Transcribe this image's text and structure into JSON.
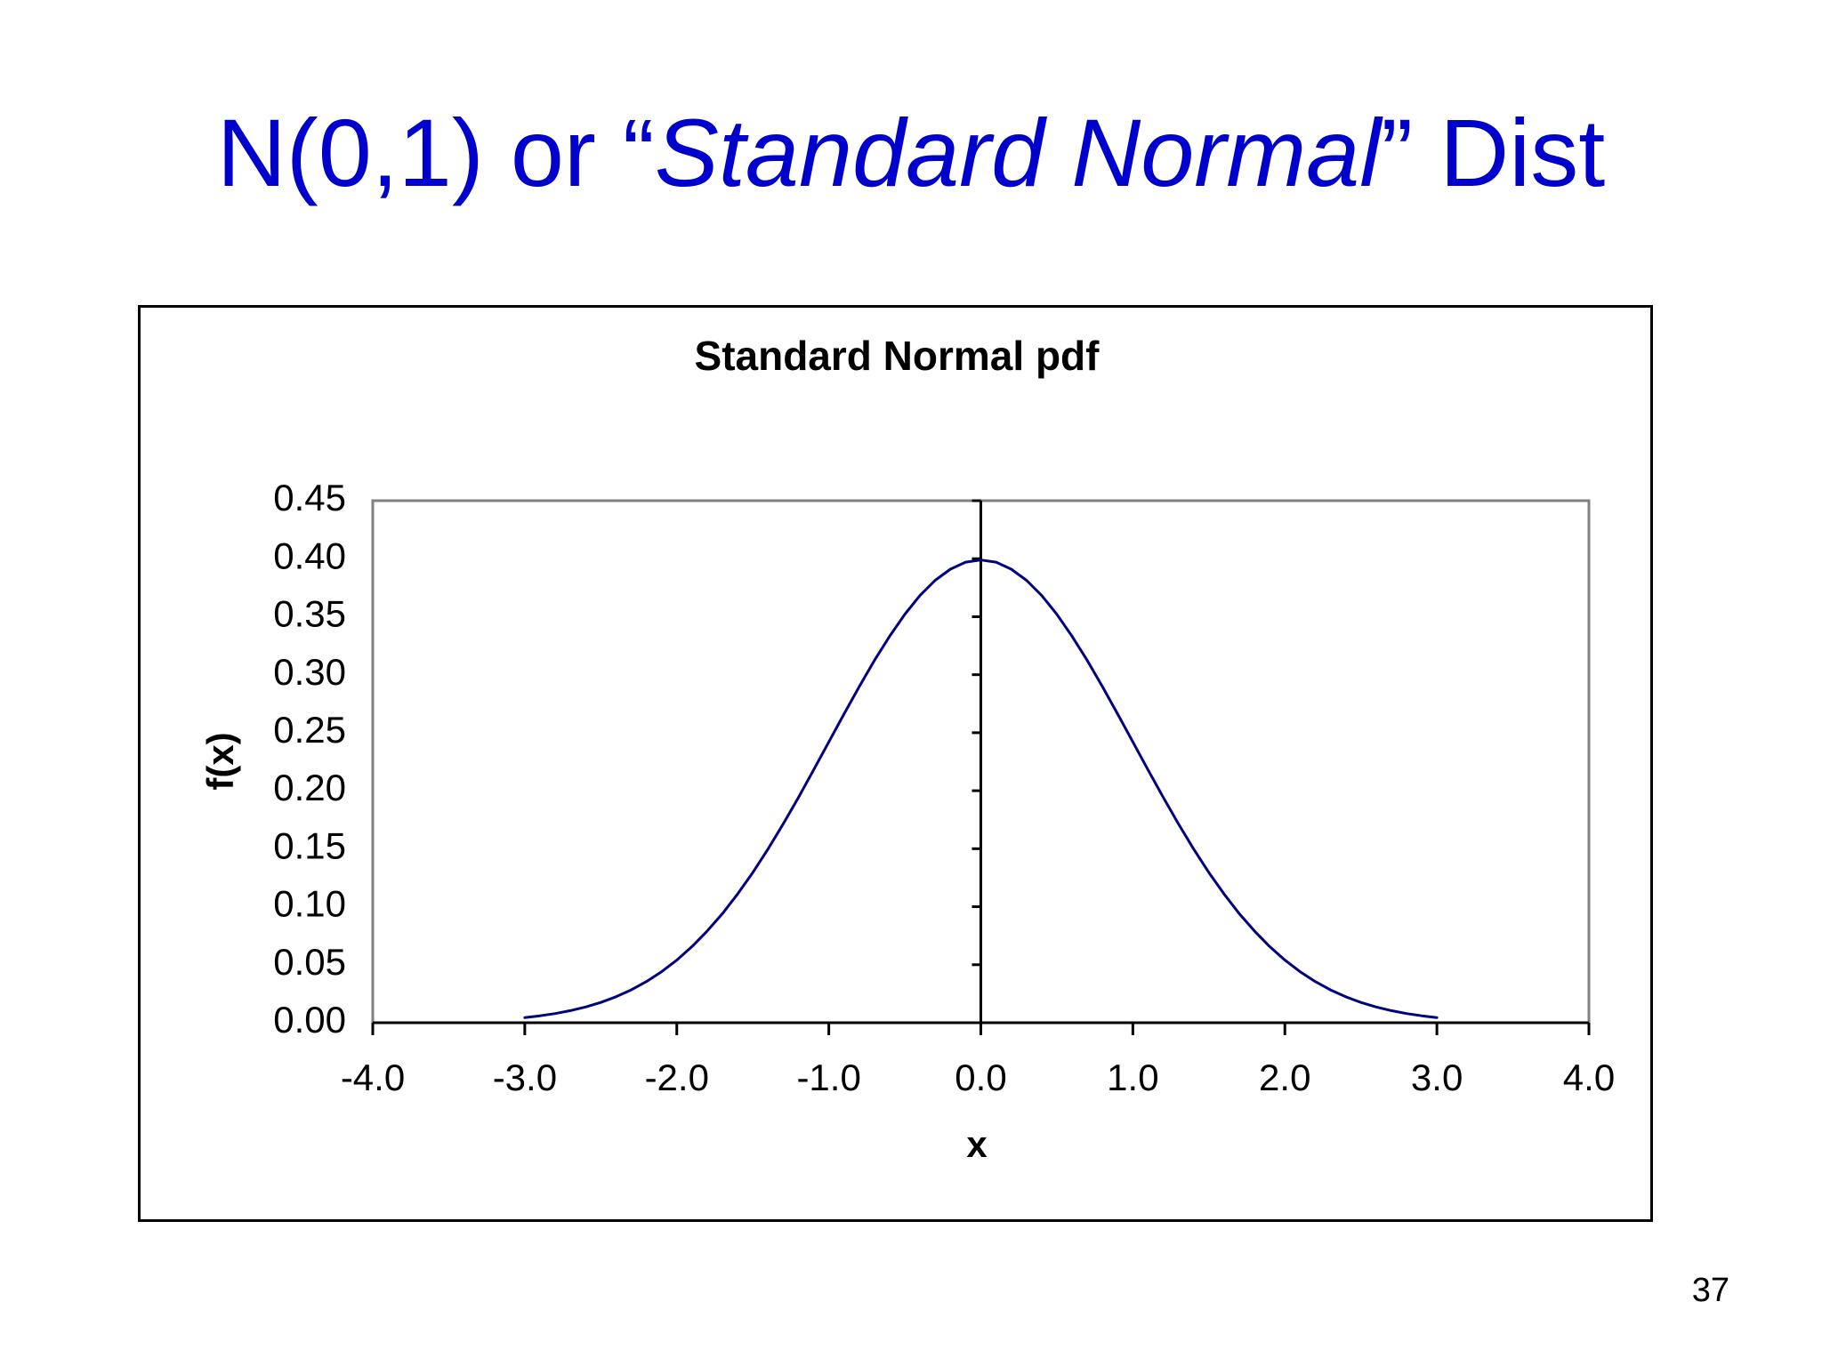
{
  "slide": {
    "title_prefix": "N(0,1) or “",
    "title_italic": "Standard Normal",
    "title_suffix": "” Dist",
    "title_color": "#0000cc",
    "page_number": "37"
  },
  "chart_data": {
    "type": "line",
    "title": "Standard Normal pdf",
    "xlabel": "x",
    "ylabel": "f(x)",
    "xlim": [
      -4.0,
      4.0
    ],
    "ylim": [
      0.0,
      0.45
    ],
    "x_ticks": [
      "-4.0",
      "-3.0",
      "-2.0",
      "-1.0",
      "0.0",
      "1.0",
      "2.0",
      "3.0",
      "4.0"
    ],
    "y_ticks": [
      "0.00",
      "0.05",
      "0.10",
      "0.15",
      "0.20",
      "0.25",
      "0.30",
      "0.35",
      "0.40",
      "0.45"
    ],
    "grid": false,
    "legend": "none",
    "line_color": "#000080",
    "series": [
      {
        "x": [
          -3.0,
          -2.9,
          -2.8,
          -2.7,
          -2.6,
          -2.5,
          -2.4,
          -2.3,
          -2.2,
          -2.1,
          -2.0,
          -1.9,
          -1.8,
          -1.7,
          -1.6,
          -1.5,
          -1.4,
          -1.3,
          -1.2,
          -1.1,
          -1.0,
          -0.9,
          -0.8,
          -0.7,
          -0.6,
          -0.5,
          -0.4,
          -0.3,
          -0.2,
          -0.1,
          0.0,
          0.1,
          0.2,
          0.3,
          0.4,
          0.5,
          0.6,
          0.7,
          0.8,
          0.9,
          1.0,
          1.1,
          1.2,
          1.3,
          1.4,
          1.5,
          1.6,
          1.7,
          1.8,
          1.9,
          2.0,
          2.1,
          2.2,
          2.3,
          2.4,
          2.5,
          2.6,
          2.7,
          2.8,
          2.9,
          3.0
        ],
        "values": [
          0.0044,
          0.006,
          0.0079,
          0.0104,
          0.0136,
          0.0175,
          0.0224,
          0.0283,
          0.0355,
          0.044,
          0.054,
          0.0656,
          0.079,
          0.094,
          0.1109,
          0.1295,
          0.1497,
          0.1714,
          0.1942,
          0.2179,
          0.242,
          0.2661,
          0.2897,
          0.3123,
          0.3332,
          0.3521,
          0.3683,
          0.3814,
          0.391,
          0.397,
          0.3989,
          0.397,
          0.391,
          0.3814,
          0.3683,
          0.3521,
          0.3332,
          0.3123,
          0.2897,
          0.2661,
          0.242,
          0.2179,
          0.1942,
          0.1714,
          0.1497,
          0.1295,
          0.1109,
          0.094,
          0.079,
          0.0656,
          0.054,
          0.044,
          0.0355,
          0.0283,
          0.0224,
          0.0175,
          0.0136,
          0.0104,
          0.0079,
          0.006,
          0.0044
        ]
      }
    ]
  }
}
